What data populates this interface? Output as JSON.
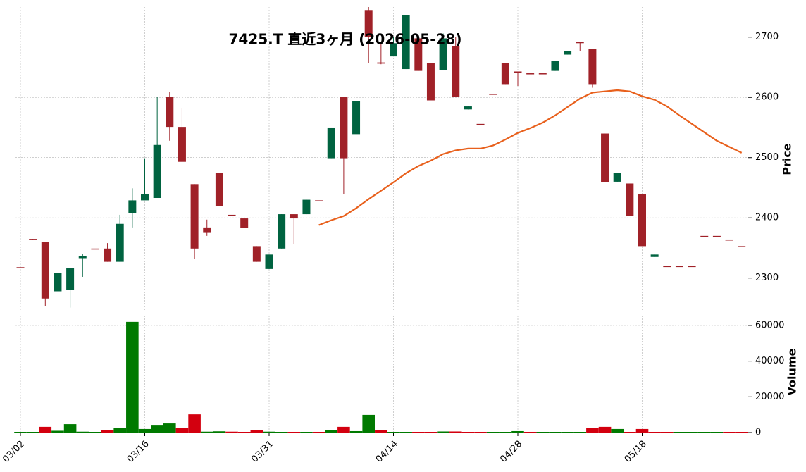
{
  "chart_data": {
    "type": "candlestick",
    "title": "7425.T 直近3ヶ月 (2026-05-28)",
    "categories": [
      "03/02",
      null,
      null,
      null,
      null,
      null,
      null,
      null,
      null,
      null,
      "03/16",
      null,
      null,
      null,
      null,
      null,
      null,
      null,
      null,
      null,
      "03/31",
      null,
      null,
      null,
      null,
      null,
      null,
      null,
      null,
      null,
      "04/14",
      null,
      null,
      null,
      null,
      null,
      null,
      null,
      null,
      null,
      "04/28",
      null,
      null,
      null,
      null,
      null,
      null,
      null,
      null,
      null,
      "05/18",
      null,
      null,
      null,
      null,
      null,
      null,
      null,
      null
    ],
    "open": [
      2318,
      2365,
      2360,
      2278,
      2280,
      2333,
      2349,
      2349,
      2327,
      2408,
      2429,
      2433,
      2601,
      2551,
      2456,
      2384,
      2475,
      2405,
      2399,
      2353,
      2315,
      2349,
      2406,
      2406,
      2429,
      2499,
      2601,
      2539,
      2745,
      2658,
      2668,
      2647,
      2698,
      2657,
      2645,
      2685,
      2580,
      2556,
      2606,
      2657,
      2643,
      2640,
      2640,
      2644,
      2671,
      2692,
      2680,
      2540,
      2460,
      2457,
      2439,
      2335,
      2320,
      2320,
      2320,
      2370,
      2370,
      2364,
      2353
    ],
    "high": [
      2318,
      2365,
      2360,
      2309,
      2316,
      2340,
      2349,
      2358,
      2405,
      2449,
      2499,
      2601,
      2609,
      2582,
      2456,
      2397,
      2475,
      2405,
      2399,
      2353,
      2339,
      2406,
      2406,
      2430,
      2429,
      2550,
      2601,
      2594,
      2750,
      2690,
      2700,
      2736,
      2698,
      2657,
      2706,
      2700,
      2585,
      2556,
      2606,
      2657,
      2643,
      2640,
      2640,
      2660,
      2677,
      2692,
      2680,
      2540,
      2475,
      2457,
      2439,
      2339,
      2320,
      2320,
      2320,
      2370,
      2370,
      2364,
      2353
    ],
    "low": [
      2318,
      2363,
      2253,
      2278,
      2251,
      2302,
      2349,
      2327,
      2327,
      2384,
      2429,
      2433,
      2528,
      2493,
      2332,
      2370,
      2420,
      2405,
      2383,
      2327,
      2315,
      2349,
      2356,
      2406,
      2429,
      2499,
      2440,
      2539,
      2657,
      2655,
      2668,
      2647,
      2644,
      2595,
      2645,
      2601,
      2580,
      2556,
      2606,
      2622,
      2619,
      2640,
      2640,
      2644,
      2671,
      2677,
      2616,
      2459,
      2460,
      2403,
      2353,
      2335,
      2320,
      2320,
      2320,
      2370,
      2370,
      2364,
      2353
    ],
    "close": [
      2318,
      2363,
      2266,
      2309,
      2316,
      2336,
      2349,
      2327,
      2390,
      2429,
      2440,
      2521,
      2551,
      2493,
      2349,
      2375,
      2420,
      2405,
      2383,
      2327,
      2339,
      2406,
      2399,
      2430,
      2429,
      2550,
      2499,
      2594,
      2700,
      2656,
      2690,
      2736,
      2644,
      2595,
      2698,
      2601,
      2585,
      2556,
      2606,
      2622,
      2641,
      2640,
      2640,
      2660,
      2677,
      2690,
      2622,
      2459,
      2475,
      2403,
      2353,
      2339,
      2320,
      2320,
      2320,
      2370,
      2370,
      2364,
      2353
    ],
    "up_color": "#006340",
    "down_color": "#a02128",
    "ma": {
      "color": "#e8601c",
      "values": [
        null,
        null,
        null,
        null,
        null,
        null,
        null,
        null,
        null,
        null,
        null,
        null,
        null,
        null,
        null,
        null,
        null,
        null,
        null,
        null,
        null,
        null,
        null,
        null,
        2388,
        2396,
        2403,
        2416,
        2431,
        2445,
        2459,
        2474,
        2486,
        2495,
        2506,
        2512,
        2515,
        2515,
        2520,
        2530,
        2541,
        2549,
        2558,
        2570,
        2584,
        2598,
        2608,
        2610,
        2612,
        2610,
        2602,
        2596,
        2585,
        2570,
        2556,
        2542,
        2528,
        2518,
        2508
      ]
    },
    "ylabel": "Price",
    "ylim": [
      2247,
      2750
    ],
    "yticks": [
      2300,
      2400,
      2500,
      2600,
      2700
    ],
    "grid": true,
    "volume": {
      "ylabel": "Volume",
      "values": [
        0,
        0,
        3200,
        1000,
        4700,
        500,
        0,
        1500,
        2700,
        62000,
        2000,
        4300,
        5100,
        2400,
        10200,
        500,
        700,
        500,
        0,
        1200,
        500,
        0,
        0,
        0,
        0,
        1500,
        3200,
        800,
        9900,
        1500,
        300,
        300,
        0,
        0,
        600,
        600,
        0,
        0,
        0,
        0,
        800,
        0,
        0,
        300,
        0,
        300,
        2400,
        3200,
        2000,
        0,
        2000,
        0,
        0,
        0,
        0,
        0,
        0,
        300,
        0
      ],
      "up_color": "#007a00",
      "down_color": "#d3000f",
      "ylim": [
        0,
        65500
      ],
      "yticks": [
        0,
        20000,
        40000,
        60000
      ]
    }
  }
}
